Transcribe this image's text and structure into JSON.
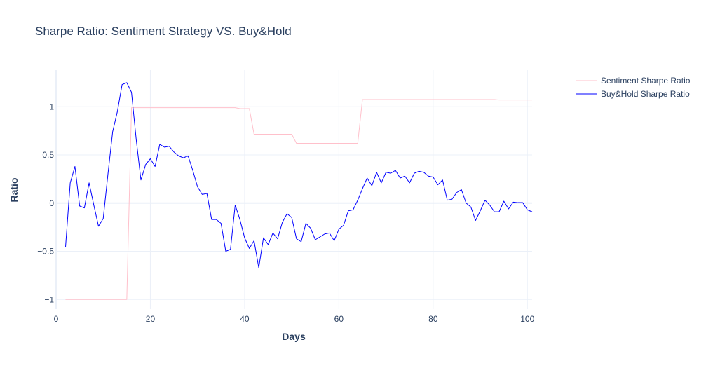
{
  "chart_data": {
    "type": "line",
    "title": "Sharpe Ratio: Sentiment Strategy VS. Buy&Hold",
    "xlabel": "Days",
    "ylabel": "Ratio",
    "xlim": [
      0,
      101
    ],
    "ylim": [
      -1.1,
      1.38
    ],
    "xticks": [
      0,
      20,
      40,
      60,
      80,
      100
    ],
    "yticks": [
      -1,
      -0.5,
      0,
      0.5,
      1
    ],
    "grid": true,
    "legend_position": "top-right",
    "series": [
      {
        "name": "Sentiment Sharpe Ratio",
        "color": "#ffc0cb",
        "points": [
          [
            2,
            -1
          ],
          [
            15,
            -1
          ],
          [
            16,
            0.99
          ],
          [
            38,
            0.99
          ],
          [
            39,
            0.98
          ],
          [
            41,
            0.98
          ],
          [
            42,
            0.715
          ],
          [
            50,
            0.715
          ],
          [
            51,
            0.62
          ],
          [
            64,
            0.62
          ],
          [
            65,
            1.075
          ],
          [
            93,
            1.075
          ],
          [
            94,
            1.07
          ],
          [
            101,
            1.07
          ]
        ]
      },
      {
        "name": "Buy&Hold Sharpe Ratio",
        "color": "#0000ff",
        "points": [
          [
            2,
            -0.46
          ],
          [
            3,
            0.21
          ],
          [
            4,
            0.38
          ],
          [
            5,
            -0.03
          ],
          [
            6,
            -0.05
          ],
          [
            7,
            0.21
          ],
          [
            8,
            -0.02
          ],
          [
            9,
            -0.24
          ],
          [
            10,
            -0.16
          ],
          [
            11,
            0.3
          ],
          [
            12,
            0.74
          ],
          [
            13,
            0.95
          ],
          [
            14,
            1.23
          ],
          [
            15,
            1.25
          ],
          [
            16,
            1.15
          ],
          [
            17,
            0.66
          ],
          [
            18,
            0.24
          ],
          [
            19,
            0.4
          ],
          [
            20,
            0.46
          ],
          [
            21,
            0.38
          ],
          [
            22,
            0.61
          ],
          [
            23,
            0.58
          ],
          [
            24,
            0.59
          ],
          [
            25,
            0.53
          ],
          [
            26,
            0.49
          ],
          [
            27,
            0.47
          ],
          [
            28,
            0.49
          ],
          [
            29,
            0.34
          ],
          [
            30,
            0.17
          ],
          [
            31,
            0.09
          ],
          [
            32,
            0.1
          ],
          [
            33,
            -0.17
          ],
          [
            34,
            -0.17
          ],
          [
            35,
            -0.21
          ],
          [
            36,
            -0.5
          ],
          [
            37,
            -0.48
          ],
          [
            38,
            -0.02
          ],
          [
            39,
            -0.17
          ],
          [
            40,
            -0.36
          ],
          [
            41,
            -0.47
          ],
          [
            42,
            -0.39
          ],
          [
            43,
            -0.67
          ],
          [
            44,
            -0.36
          ],
          [
            45,
            -0.43
          ],
          [
            46,
            -0.31
          ],
          [
            47,
            -0.37
          ],
          [
            48,
            -0.2
          ],
          [
            49,
            -0.11
          ],
          [
            50,
            -0.15
          ],
          [
            51,
            -0.37
          ],
          [
            52,
            -0.4
          ],
          [
            53,
            -0.21
          ],
          [
            54,
            -0.26
          ],
          [
            55,
            -0.38
          ],
          [
            56,
            -0.35
          ],
          [
            57,
            -0.32
          ],
          [
            58,
            -0.31
          ],
          [
            59,
            -0.39
          ],
          [
            60,
            -0.27
          ],
          [
            61,
            -0.23
          ],
          [
            62,
            -0.08
          ],
          [
            63,
            -0.07
          ],
          [
            64,
            0.03
          ],
          [
            65,
            0.15
          ],
          [
            66,
            0.26
          ],
          [
            67,
            0.18
          ],
          [
            68,
            0.32
          ],
          [
            69,
            0.21
          ],
          [
            70,
            0.32
          ],
          [
            71,
            0.31
          ],
          [
            72,
            0.34
          ],
          [
            73,
            0.26
          ],
          [
            74,
            0.28
          ],
          [
            75,
            0.21
          ],
          [
            76,
            0.31
          ],
          [
            77,
            0.33
          ],
          [
            78,
            0.32
          ],
          [
            79,
            0.28
          ],
          [
            80,
            0.27
          ],
          [
            81,
            0.19
          ],
          [
            82,
            0.24
          ],
          [
            83,
            0.03
          ],
          [
            84,
            0.04
          ],
          [
            85,
            0.11
          ],
          [
            86,
            0.14
          ],
          [
            87,
            0.0
          ],
          [
            88,
            -0.04
          ],
          [
            89,
            -0.18
          ],
          [
            90,
            -0.08
          ],
          [
            91,
            0.03
          ],
          [
            92,
            -0.02
          ],
          [
            93,
            -0.09
          ],
          [
            94,
            -0.09
          ],
          [
            95,
            0.02
          ],
          [
            96,
            -0.06
          ],
          [
            97,
            0.01
          ],
          [
            98,
            0.005
          ],
          [
            99,
            0.005
          ],
          [
            100,
            -0.07
          ],
          [
            101,
            -0.09
          ]
        ]
      }
    ]
  }
}
